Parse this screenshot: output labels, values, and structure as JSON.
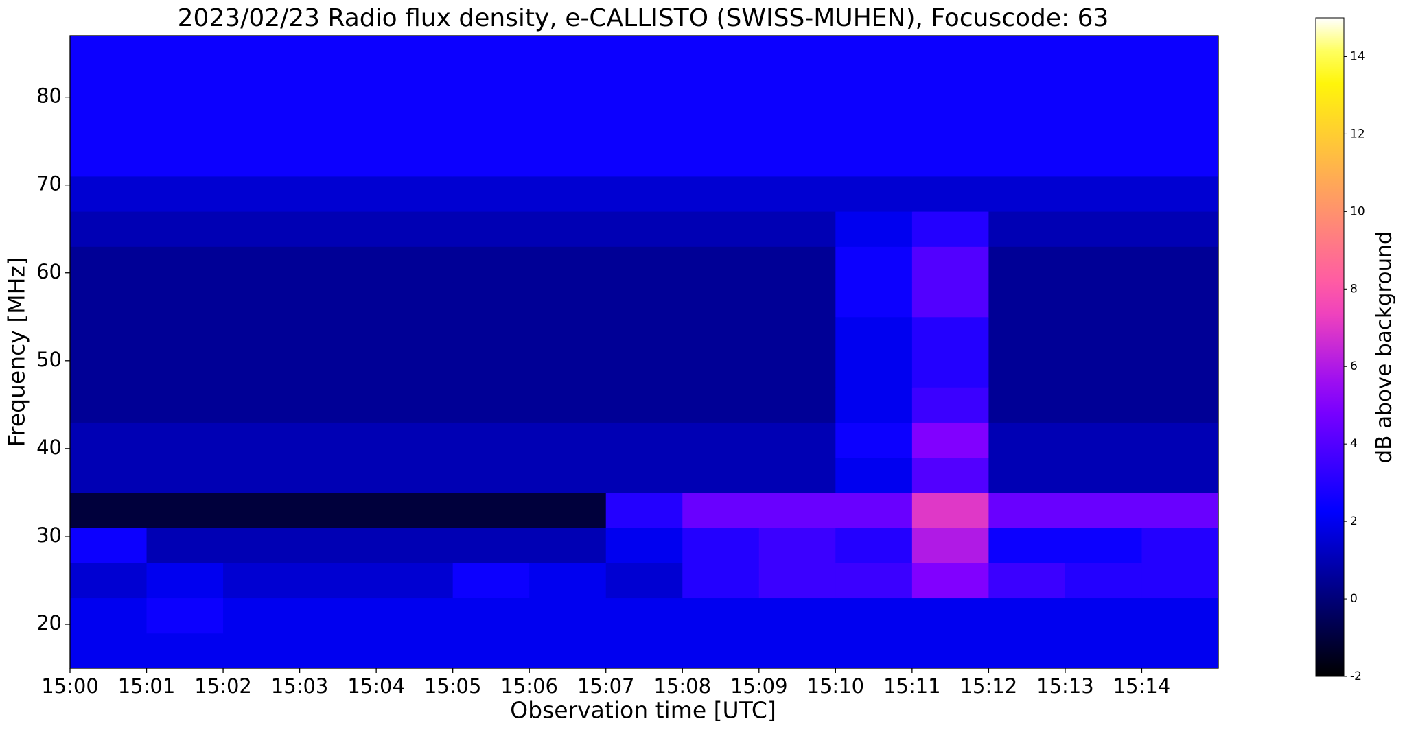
{
  "chart_data": {
    "type": "heatmap",
    "title": "2023/02/23  Radio flux density, e-CALLISTO (SWISS-MUHEN), Focuscode: 63",
    "x_label": "Observation time [UTC]",
    "y_label": "Frequency [MHz]",
    "x": [
      "15:00",
      "15:01",
      "15:02",
      "15:03",
      "15:04",
      "15:05",
      "15:06",
      "15:07",
      "15:08",
      "15:09",
      "15:10",
      "15:11",
      "15:12",
      "15:13",
      "15:14"
    ],
    "ybins": [
      15,
      19,
      23,
      27,
      31,
      35,
      39,
      43,
      47,
      51,
      55,
      59,
      63,
      67,
      71,
      75,
      79,
      83,
      87
    ],
    "ylim": [
      15,
      87
    ],
    "yticks": [
      20,
      30,
      40,
      50,
      60,
      70,
      80
    ],
    "values": [
      [
        2,
        2,
        2,
        2,
        2,
        2,
        2,
        2,
        2,
        2,
        2,
        2,
        2,
        2,
        2
      ],
      [
        2,
        2.5,
        2,
        2,
        2,
        2,
        2,
        2,
        2,
        2,
        2,
        2,
        2,
        2,
        2
      ],
      [
        1.5,
        2,
        1.5,
        1.5,
        1.5,
        2.5,
        2,
        1.5,
        3,
        3.5,
        3.5,
        5,
        3.5,
        3,
        3
      ],
      [
        2.5,
        1,
        1,
        1,
        1,
        1,
        1,
        2,
        3,
        3.5,
        3,
        6,
        2.5,
        2.5,
        3
      ],
      [
        -1,
        -1,
        -1,
        -1,
        -1,
        -1,
        -1,
        3,
        4.5,
        4.5,
        4.5,
        7,
        4.5,
        4.5,
        4.5
      ],
      [
        1,
        1,
        1,
        1,
        1,
        1,
        1,
        1,
        1,
        1,
        2,
        4,
        1,
        1,
        1
      ],
      [
        1,
        1,
        1,
        1,
        1,
        1,
        1,
        1,
        1,
        1,
        2.5,
        5,
        1,
        1,
        1
      ],
      [
        0.5,
        0.5,
        0.5,
        0.5,
        0.5,
        0.5,
        0.5,
        0.5,
        0.5,
        0.5,
        2,
        3.5,
        0.5,
        0.5,
        0.5
      ],
      [
        0.5,
        0.5,
        0.5,
        0.5,
        0.5,
        0.5,
        0.5,
        0.5,
        0.5,
        0.5,
        2,
        3,
        0.5,
        0.5,
        0.5
      ],
      [
        0.5,
        0.5,
        0.5,
        0.5,
        0.5,
        0.5,
        0.5,
        0.5,
        0.5,
        0.5,
        2,
        3,
        0.5,
        0.5,
        0.5
      ],
      [
        0.5,
        0.5,
        0.5,
        0.5,
        0.5,
        0.5,
        0.5,
        0.5,
        0.5,
        0.5,
        2.5,
        4,
        0.5,
        0.5,
        0.5
      ],
      [
        0.5,
        0.5,
        0.5,
        0.5,
        0.5,
        0.5,
        0.5,
        0.5,
        0.5,
        0.5,
        2.5,
        4,
        0.5,
        0.5,
        0.5
      ],
      [
        1,
        1,
        1,
        1,
        1,
        1,
        1,
        1,
        1,
        1,
        2,
        3,
        1,
        1,
        1
      ],
      [
        1.5,
        1.5,
        1.5,
        1.5,
        1.5,
        1.5,
        1.5,
        1.5,
        1.5,
        1.5,
        1.5,
        1.5,
        1.5,
        1.5,
        1.5
      ],
      [
        2.5,
        2.5,
        2.5,
        2.5,
        2.5,
        2.5,
        2.5,
        2.5,
        2.5,
        2.5,
        2.5,
        2.5,
        2.5,
        2.5,
        2.5
      ],
      [
        2.5,
        2.5,
        2.5,
        2.5,
        2.5,
        2.5,
        2.5,
        2.5,
        2.5,
        2.5,
        2.5,
        2.5,
        2.5,
        2.5,
        2.5
      ],
      [
        2.5,
        2.5,
        2.5,
        2.5,
        2.5,
        2.5,
        2.5,
        2.5,
        2.5,
        2.5,
        2.5,
        2.5,
        2.5,
        2.5,
        2.5
      ],
      [
        2.5,
        2.5,
        2.5,
        2.5,
        2.5,
        2.5,
        2.5,
        2.5,
        2.5,
        2.5,
        2.5,
        2.5,
        2.5,
        2.5,
        2.5
      ]
    ],
    "colormap": "gnuplot2",
    "clim": [
      -2,
      15
    ],
    "cticks": [
      -2,
      0,
      2,
      4,
      6,
      8,
      10,
      12,
      14
    ],
    "colorbar_label": "dB above background"
  }
}
